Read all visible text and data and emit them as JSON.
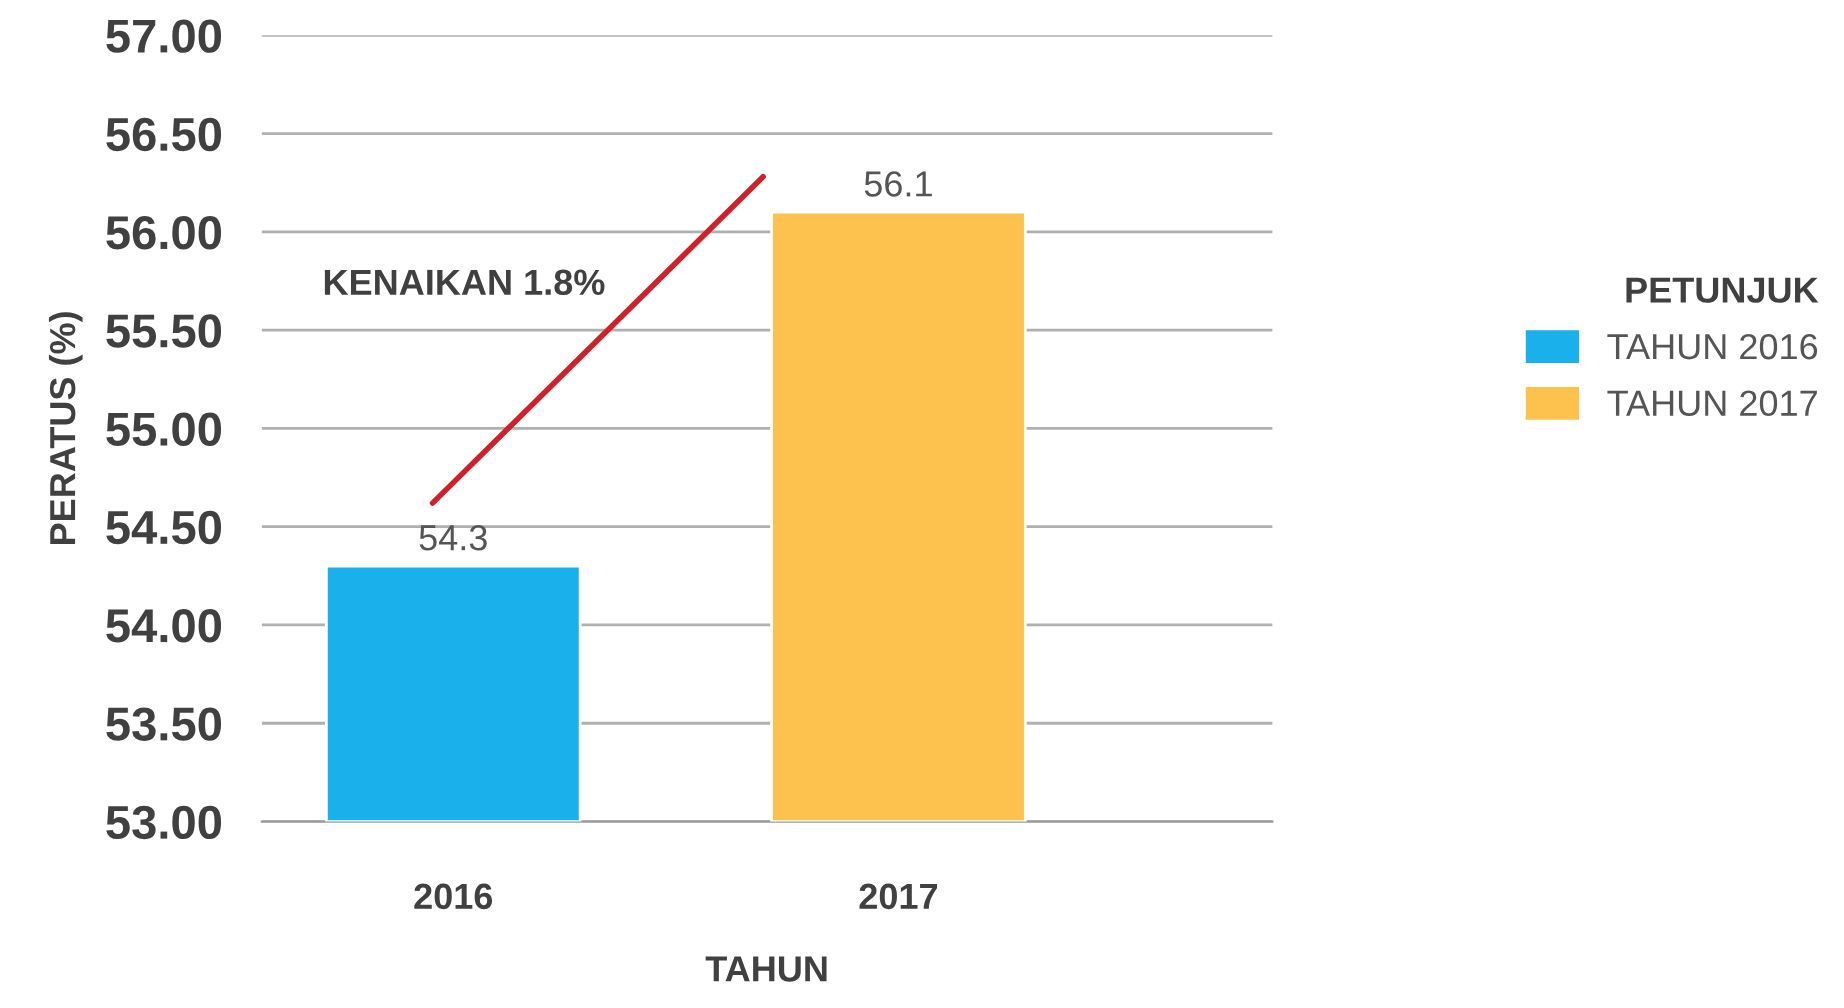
{
  "chart_data": {
    "type": "bar",
    "xlabel": "TAHUN",
    "ylabel": "PERATUS (%)",
    "legend_title": "PETUNJUK",
    "categories": [
      "2016",
      "2017"
    ],
    "series": [
      {
        "name": "TAHUN 2016",
        "color": "#1ab0ec",
        "values": [
          54.3,
          null
        ]
      },
      {
        "name": "TAHUN 2017",
        "color": "#fdc14d",
        "values": [
          null,
          56.1
        ]
      }
    ],
    "ylim": [
      53,
      57
    ],
    "yticks": [
      {
        "value": 53,
        "label": "53.00"
      },
      {
        "value": 53.5,
        "label": "53.50"
      },
      {
        "value": 54,
        "label": "54.00"
      },
      {
        "value": 54.5,
        "label": "54.50"
      },
      {
        "value": 55,
        "label": "55.00"
      },
      {
        "value": 55.5,
        "label": "55.50"
      },
      {
        "value": 56,
        "label": "56.00"
      },
      {
        "value": 56.5,
        "label": "56.50"
      },
      {
        "value": 57,
        "label": "57.00"
      }
    ],
    "grid": "y",
    "legend": "right",
    "data_labels": true,
    "annotations": [
      "KENAIKAN 1.8%"
    ]
  }
}
